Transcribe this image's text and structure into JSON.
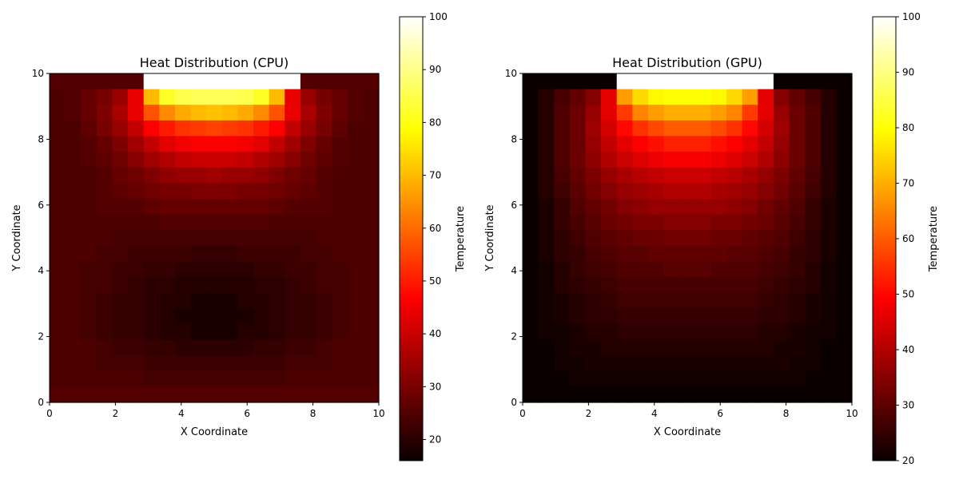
{
  "chart_data": [
    {
      "type": "heatmap",
      "title": "Heat Distribution (CPU)",
      "xlabel": "X Coordinate",
      "ylabel": "Y Coordinate",
      "xlim": [
        0,
        10
      ],
      "ylim": [
        0,
        10
      ],
      "x_ticks": [
        0,
        2,
        4,
        6,
        8,
        10
      ],
      "y_ticks": [
        0,
        2,
        4,
        6,
        8,
        10
      ],
      "colormap": "hot",
      "colorbar": {
        "label": "Temperature",
        "min": 16,
        "max": 100,
        "ticks": [
          20,
          30,
          40,
          50,
          60,
          70,
          80,
          90,
          100
        ]
      },
      "grid": false,
      "rows_top_to_bottom": [
        [
          25,
          25,
          25,
          25,
          25,
          25,
          100,
          100,
          100,
          100,
          100,
          100,
          100,
          100,
          100,
          100,
          25,
          25,
          25,
          25,
          25
        ],
        [
          24,
          25,
          27,
          29,
          33,
          43,
          70,
          82,
          85,
          86,
          86,
          86,
          85,
          82,
          70,
          43,
          33,
          29,
          27,
          25,
          24
        ],
        [
          24,
          25,
          27,
          30,
          35,
          43,
          57,
          64,
          68,
          70,
          71,
          70,
          68,
          64,
          57,
          43,
          35,
          30,
          27,
          25,
          24
        ],
        [
          24,
          24,
          26,
          29,
          33,
          38,
          46,
          50,
          53,
          54,
          55,
          54,
          53,
          50,
          46,
          38,
          33,
          29,
          26,
          24,
          24
        ],
        [
          24,
          24,
          25,
          27,
          30,
          34,
          38,
          42,
          44,
          45,
          45,
          45,
          44,
          42,
          38,
          34,
          30,
          27,
          25,
          24,
          24
        ],
        [
          24,
          24,
          25,
          26,
          28,
          31,
          34,
          36,
          38,
          39,
          39,
          39,
          38,
          36,
          34,
          31,
          28,
          26,
          25,
          24,
          24
        ],
        [
          24,
          24,
          24,
          25,
          27,
          28,
          30,
          32,
          33,
          33,
          34,
          33,
          33,
          32,
          30,
          28,
          27,
          25,
          24,
          24,
          24
        ],
        [
          24,
          24,
          24,
          25,
          26,
          27,
          28,
          29,
          29,
          30,
          30,
          30,
          29,
          29,
          28,
          27,
          26,
          25,
          24,
          24,
          24
        ],
        [
          24,
          24,
          24,
          25,
          25,
          25,
          26,
          27,
          27,
          27,
          27,
          27,
          27,
          27,
          26,
          25,
          25,
          25,
          24,
          24,
          24
        ],
        [
          24,
          24,
          24,
          24,
          24,
          24,
          24,
          25,
          25,
          25,
          25,
          25,
          25,
          25,
          24,
          24,
          24,
          24,
          24,
          24,
          24
        ],
        [
          24,
          24,
          24,
          24,
          23,
          23,
          23,
          23,
          23,
          23,
          23,
          23,
          23,
          23,
          23,
          23,
          23,
          24,
          24,
          24,
          24
        ],
        [
          24,
          24,
          24,
          23,
          23,
          22,
          22,
          22,
          22,
          21,
          21,
          21,
          22,
          22,
          22,
          22,
          23,
          23,
          24,
          24,
          24
        ],
        [
          24,
          24,
          23,
          23,
          22,
          22,
          21,
          21,
          20,
          20,
          20,
          20,
          20,
          21,
          21,
          22,
          22,
          23,
          23,
          24,
          24
        ],
        [
          24,
          24,
          23,
          23,
          22,
          21,
          20,
          20,
          19,
          19,
          19,
          19,
          19,
          20,
          20,
          21,
          22,
          23,
          23,
          24,
          24
        ],
        [
          24,
          24,
          23,
          22,
          21,
          21,
          20,
          19,
          19,
          18,
          18,
          18,
          19,
          19,
          20,
          21,
          21,
          22,
          23,
          24,
          24
        ],
        [
          24,
          24,
          23,
          22,
          21,
          21,
          20,
          19,
          18,
          18,
          18,
          18,
          18,
          19,
          20,
          21,
          21,
          22,
          23,
          24,
          24
        ],
        [
          24,
          24,
          23,
          22,
          21,
          21,
          20,
          19,
          19,
          18,
          18,
          18,
          19,
          19,
          20,
          21,
          21,
          22,
          23,
          24,
          24
        ],
        [
          24,
          24,
          24,
          23,
          22,
          22,
          21,
          21,
          20,
          20,
          20,
          20,
          20,
          21,
          21,
          22,
          22,
          23,
          24,
          24,
          24
        ],
        [
          24,
          24,
          24,
          23,
          23,
          23,
          22,
          22,
          22,
          22,
          22,
          22,
          22,
          22,
          22,
          23,
          23,
          23,
          24,
          24,
          24
        ],
        [
          24,
          24,
          24,
          24,
          24,
          24,
          23,
          23,
          23,
          23,
          23,
          23,
          23,
          23,
          23,
          24,
          24,
          24,
          24,
          24,
          24
        ],
        [
          25,
          25,
          25,
          25,
          25,
          25,
          25,
          25,
          25,
          25,
          25,
          25,
          25,
          25,
          25,
          25,
          25,
          25,
          25,
          25,
          25
        ]
      ]
    },
    {
      "type": "heatmap",
      "title": "Heat Distribution (GPU)",
      "xlabel": "X Coordinate",
      "ylabel": "Y Coordinate",
      "xlim": [
        0,
        10
      ],
      "ylim": [
        0,
        10
      ],
      "x_ticks": [
        0,
        2,
        4,
        6,
        8,
        10
      ],
      "y_ticks": [
        0,
        2,
        4,
        6,
        8,
        10
      ],
      "colormap": "hot",
      "colorbar": {
        "label": "Temperature",
        "min": 20,
        "max": 100,
        "ticks": [
          20,
          30,
          40,
          50,
          60,
          70,
          80,
          90,
          100
        ]
      },
      "grid": false,
      "rows_top_to_bottom": [
        [
          20,
          20,
          20,
          20,
          20,
          20,
          100,
          100,
          100,
          100,
          100,
          100,
          100,
          100,
          100,
          100,
          20,
          20,
          20,
          20,
          20
        ],
        [
          20,
          23,
          27,
          30,
          34,
          45,
          68,
          75,
          79,
          80,
          80,
          80,
          79,
          75,
          68,
          45,
          34,
          30,
          27,
          23,
          20
        ],
        [
          20,
          23,
          28,
          31,
          36,
          45,
          56,
          65,
          68,
          70,
          70,
          70,
          68,
          65,
          56,
          45,
          36,
          31,
          28,
          23,
          20
        ],
        [
          20,
          23,
          28,
          31,
          37,
          43,
          50,
          55,
          58,
          60,
          60,
          60,
          58,
          55,
          50,
          43,
          37,
          31,
          28,
          23,
          20
        ],
        [
          20,
          23,
          28,
          31,
          36,
          41,
          45,
          49,
          51,
          53,
          53,
          53,
          51,
          49,
          45,
          41,
          36,
          31,
          28,
          23,
          20
        ],
        [
          20,
          23,
          28,
          31,
          35,
          39,
          42,
          44,
          46,
          47,
          47,
          47,
          46,
          44,
          42,
          39,
          35,
          31,
          28,
          23,
          20
        ],
        [
          20,
          23,
          27,
          30,
          33,
          36,
          38,
          40,
          41,
          42,
          42,
          42,
          41,
          40,
          38,
          36,
          33,
          30,
          27,
          23,
          20
        ],
        [
          20,
          23,
          26,
          29,
          32,
          34,
          36,
          37,
          38,
          39,
          39,
          39,
          38,
          37,
          36,
          34,
          32,
          29,
          26,
          23,
          20
        ],
        [
          20,
          22,
          25,
          28,
          30,
          32,
          34,
          35,
          36,
          36,
          36,
          36,
          36,
          35,
          34,
          32,
          30,
          28,
          25,
          22,
          20
        ],
        [
          20,
          22,
          25,
          27,
          29,
          31,
          32,
          33,
          33,
          34,
          34,
          34,
          33,
          33,
          32,
          31,
          29,
          27,
          25,
          22,
          20
        ],
        [
          20,
          22,
          24,
          26,
          28,
          29,
          30,
          31,
          31,
          32,
          32,
          32,
          31,
          31,
          30,
          29,
          28,
          26,
          24,
          22,
          20
        ],
        [
          20,
          22,
          24,
          25,
          27,
          28,
          29,
          29,
          30,
          30,
          30,
          30,
          30,
          29,
          29,
          28,
          27,
          25,
          24,
          22,
          20
        ],
        [
          20,
          21,
          23,
          25,
          26,
          27,
          28,
          28,
          28,
          29,
          29,
          29,
          28,
          28,
          28,
          27,
          26,
          25,
          23,
          21,
          20
        ],
        [
          20,
          21,
          23,
          24,
          25,
          26,
          27,
          27,
          27,
          27,
          27,
          27,
          27,
          27,
          27,
          26,
          25,
          24,
          23,
          21,
          20
        ],
        [
          20,
          21,
          22,
          23,
          24,
          25,
          26,
          26,
          26,
          26,
          26,
          26,
          26,
          26,
          26,
          25,
          24,
          23,
          22,
          21,
          20
        ],
        [
          20,
          21,
          22,
          23,
          24,
          24,
          25,
          25,
          25,
          25,
          25,
          25,
          25,
          25,
          25,
          24,
          24,
          23,
          22,
          21,
          20
        ],
        [
          20,
          21,
          21,
          22,
          23,
          23,
          24,
          24,
          24,
          24,
          24,
          24,
          24,
          24,
          24,
          23,
          23,
          22,
          21,
          21,
          20
        ],
        [
          20,
          20,
          21,
          22,
          22,
          23,
          23,
          23,
          23,
          23,
          23,
          23,
          23,
          23,
          23,
          23,
          22,
          22,
          21,
          20,
          20
        ],
        [
          20,
          20,
          21,
          21,
          22,
          22,
          22,
          22,
          22,
          22,
          22,
          22,
          22,
          22,
          22,
          22,
          22,
          21,
          21,
          20,
          20
        ],
        [
          20,
          20,
          20,
          21,
          21,
          21,
          21,
          21,
          21,
          21,
          21,
          21,
          21,
          21,
          21,
          21,
          21,
          21,
          20,
          20,
          20
        ],
        [
          20,
          20,
          20,
          20,
          20,
          20,
          20,
          20,
          20,
          20,
          20,
          20,
          20,
          20,
          20,
          20,
          20,
          20,
          20,
          20,
          20
        ]
      ]
    }
  ]
}
